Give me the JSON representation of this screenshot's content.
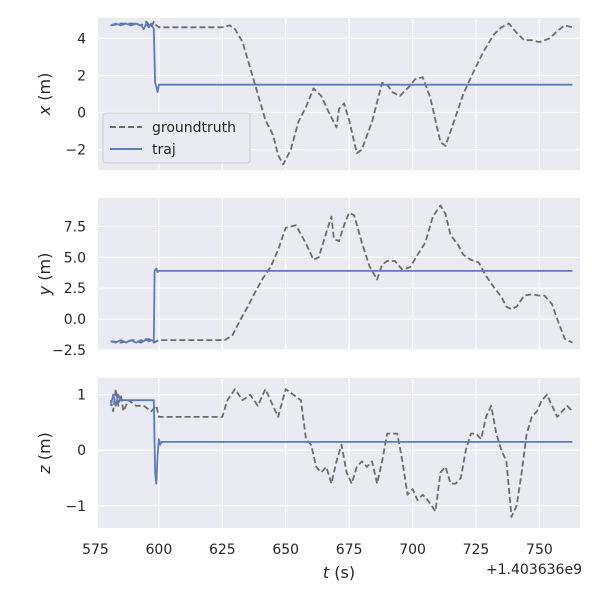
{
  "chart_data": {
    "type": "line",
    "x_offset_label": "+1.403636e9",
    "xlabel": "t (s)",
    "xlim": [
      576,
      766
    ],
    "xticks": [
      575,
      600,
      625,
      650,
      675,
      700,
      725,
      750
    ],
    "grid": true,
    "legend": {
      "placement": "lower-left",
      "panel": 0,
      "entries": [
        "groundtruth",
        "traj"
      ]
    },
    "colors": {
      "groundtruth": "#6b6b6b",
      "traj": "#5a7bc1",
      "background": "#eaeaf2",
      "grid": "#ffffff"
    },
    "panels": [
      {
        "ylabel": "x (m)",
        "ylim": [
          -3.1,
          5.1
        ],
        "yticks": [
          -2,
          0,
          2,
          4
        ],
        "series": [
          {
            "name": "groundtruth",
            "style": "dashed",
            "x": [
              581,
              585,
              590,
              593,
              595,
              597,
              598,
              599,
              600,
              610,
              620,
              625,
              628,
              630,
              633,
              636,
              639,
              642,
              645,
              647,
              649,
              652,
              655,
              658,
              661,
              664,
              667,
              670,
              671,
              673,
              675,
              678,
              680,
              684,
              688,
              690,
              692,
              695,
              698,
              701,
              704,
              707,
              711,
              713,
              716,
              720,
              724,
              728,
              732,
              735,
              738,
              741,
              744,
              747,
              750,
              754,
              757,
              760,
              763
            ],
            "y": [
              4.7,
              4.8,
              4.8,
              4.7,
              4.9,
              4.6,
              4.9,
              4.7,
              4.6,
              4.6,
              4.6,
              4.6,
              4.7,
              4.5,
              3.8,
              2.4,
              1.0,
              -0.4,
              -1.2,
              -2.3,
              -2.8,
              -2.0,
              -0.5,
              0.3,
              1.3,
              0.9,
              0.0,
              -0.8,
              0.2,
              0.5,
              -0.4,
              -2.2,
              -2.0,
              -0.5,
              1.6,
              1.5,
              1.1,
              0.9,
              1.3,
              1.8,
              1.9,
              0.8,
              -1.6,
              -1.8,
              -0.6,
              1.0,
              2.2,
              3.3,
              4.2,
              4.6,
              4.8,
              4.3,
              3.9,
              3.9,
              3.8,
              4.0,
              4.4,
              4.7,
              4.6
            ]
          },
          {
            "name": "traj",
            "style": "solid",
            "x": [
              581,
              583,
              585,
              587,
              589,
              591,
              593,
              594,
              595,
              596,
              597,
              598,
              598.5,
              599,
              599.5,
              600,
              601,
              610,
              650,
              700,
              763
            ],
            "y": [
              4.7,
              4.8,
              4.7,
              4.8,
              4.7,
              4.8,
              4.7,
              4.5,
              4.8,
              4.6,
              4.8,
              4.5,
              1.6,
              1.4,
              1.1,
              1.5,
              1.5,
              1.5,
              1.5,
              1.5,
              1.5
            ]
          }
        ]
      },
      {
        "ylabel": "y (m)",
        "ylim": [
          -2.5,
          9.8
        ],
        "yticks": [
          -2.5,
          0.0,
          2.5,
          5.0,
          7.5
        ],
        "ytick_labels": [
          "−2.5",
          "0.0",
          "2.5",
          "5.0",
          "7.5"
        ],
        "series": [
          {
            "name": "groundtruth",
            "style": "dashed",
            "x": [
              581,
              585,
              590,
              593,
              596,
              598,
              600,
              610,
              620,
              626,
              629,
              632,
              635,
              638,
              641,
              644,
              647,
              650,
              654,
              658,
              661,
              663,
              666,
              668,
              669,
              671,
              673,
              675,
              677,
              680,
              683,
              686,
              688,
              690,
              693,
              696,
              699,
              702,
              705,
              708,
              711,
              713,
              715,
              718,
              720,
              723,
              726,
              729,
              732,
              735,
              737,
              739,
              741,
              744,
              747,
              750,
              752,
              755,
              757,
              760,
              763
            ],
            "y": [
              -1.8,
              -1.9,
              -1.7,
              -1.9,
              -1.6,
              -1.9,
              -1.7,
              -1.7,
              -1.7,
              -1.7,
              -1.3,
              -0.1,
              1.0,
              2.2,
              3.3,
              4.2,
              5.6,
              7.4,
              7.6,
              6.1,
              4.8,
              5.0,
              7.0,
              8.3,
              6.5,
              6.3,
              7.6,
              8.6,
              8.4,
              6.2,
              4.3,
              3.2,
              4.4,
              4.7,
              4.7,
              4.0,
              4.2,
              5.2,
              6.2,
              8.3,
              9.2,
              8.5,
              6.8,
              6.0,
              5.2,
              4.8,
              4.6,
              3.5,
              2.6,
              1.8,
              1.0,
              0.8,
              1.0,
              1.9,
              2.0,
              1.9,
              1.9,
              1.2,
              0.0,
              -1.6,
              -1.9
            ]
          },
          {
            "name": "traj",
            "style": "solid",
            "x": [
              581,
              583,
              585,
              587,
              589,
              591,
              593,
              594,
              595,
              596,
              597,
              598,
              598.3,
              599,
              599.5,
              600,
              610,
              650,
              700,
              763
            ],
            "y": [
              -1.8,
              -1.9,
              -1.7,
              -1.9,
              -1.7,
              -1.9,
              -1.7,
              -1.8,
              -1.6,
              -1.8,
              -1.7,
              -1.8,
              3.9,
              4.1,
              3.8,
              3.9,
              3.9,
              3.9,
              3.9,
              3.9
            ]
          }
        ]
      },
      {
        "ylabel": "z (m)",
        "ylim": [
          -1.4,
          1.3
        ],
        "yticks": [
          -1,
          0,
          1
        ],
        "ytick_labels": [
          "−1",
          "0",
          "1"
        ],
        "series": [
          {
            "name": "groundtruth",
            "style": "dashed",
            "x": [
              581,
              582,
              583,
              584,
              585,
              586,
              588,
              591,
              594,
              597,
              599,
              600,
              610,
              620,
              625,
              627,
              630,
              633,
              636,
              639,
              642,
              645,
              647,
              650,
              653,
              656,
              658,
              660,
              662,
              664,
              666,
              668,
              670,
              672,
              674,
              676,
              678,
              680,
              682,
              684,
              686,
              688,
              690,
              692,
              694,
              696,
              698,
              700,
              702,
              704,
              706,
              709,
              711,
              713,
              715,
              717,
              719,
              721,
              723,
              725,
              727,
              729,
              731,
              733,
              735,
              737,
              739,
              741,
              743,
              745,
              747,
              749,
              751,
              753,
              755,
              757,
              759,
              761,
              763
            ],
            "y": [
              0.9,
              0.7,
              1.1,
              0.8,
              1.0,
              0.7,
              0.9,
              0.8,
              0.8,
              0.7,
              0.8,
              0.6,
              0.6,
              0.6,
              0.6,
              0.9,
              1.1,
              0.9,
              1.0,
              0.8,
              1.1,
              0.8,
              0.6,
              1.1,
              1.0,
              0.9,
              0.2,
              0.1,
              -0.3,
              -0.4,
              -0.3,
              -0.6,
              -0.2,
              0.1,
              -0.4,
              -0.6,
              -0.3,
              -0.2,
              -0.3,
              -0.2,
              -0.6,
              -0.2,
              0.3,
              0.3,
              0.3,
              -0.2,
              -0.8,
              -0.7,
              -0.9,
              -0.8,
              -0.9,
              -1.1,
              -0.4,
              -0.3,
              -0.6,
              -0.6,
              -0.5,
              0.0,
              0.3,
              0.3,
              0.2,
              0.6,
              0.8,
              0.3,
              0.0,
              -0.2,
              -1.2,
              -1.0,
              -0.4,
              0.3,
              0.6,
              0.7,
              0.9,
              1.0,
              0.8,
              0.6,
              0.7,
              0.8,
              0.7
            ]
          },
          {
            "name": "traj",
            "style": "solid",
            "x": [
              581,
              582,
              583,
              584,
              585,
              586,
              587,
              590,
              593,
              596,
              598,
              598.5,
              599,
              599.5,
              600,
              600.5,
              601,
              610,
              650,
              700,
              763
            ],
            "y": [
              0.8,
              1.0,
              0.8,
              1.0,
              0.9,
              0.9,
              0.9,
              0.9,
              0.9,
              0.9,
              0.9,
              -0.4,
              -0.6,
              -0.1,
              0.2,
              0.1,
              0.15,
              0.15,
              0.15,
              0.15,
              0.15
            ]
          }
        ]
      }
    ]
  }
}
